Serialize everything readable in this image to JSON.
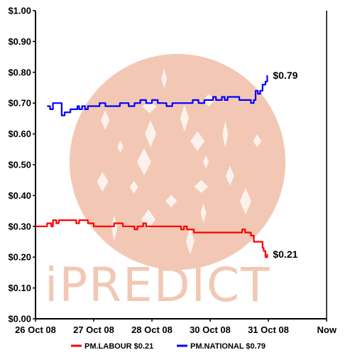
{
  "watermark": {
    "text": "iPREDICT",
    "color": "#f2c8b4"
  },
  "chart_data": {
    "type": "line",
    "title": "",
    "xlabel": "",
    "ylabel": "",
    "ylim": [
      0.0,
      1.0
    ],
    "y_ticks": [
      {
        "value": 0.0,
        "label": "$0.00"
      },
      {
        "value": 0.1,
        "label": "$0.10"
      },
      {
        "value": 0.2,
        "label": "$0.20"
      },
      {
        "value": 0.3,
        "label": "$0.30"
      },
      {
        "value": 0.4,
        "label": "$0.40"
      },
      {
        "value": 0.5,
        "label": "$0.50"
      },
      {
        "value": 0.6,
        "label": "$0.60"
      },
      {
        "value": 0.7,
        "label": "$0.70"
      },
      {
        "value": 0.8,
        "label": "$0.80"
      },
      {
        "value": 0.9,
        "label": "$0.90"
      },
      {
        "value": 1.0,
        "label": "$1.00"
      }
    ],
    "x_ticks": [
      "26 Oct 08",
      "27 Oct 08",
      "28 Oct 08",
      "30 Oct 08",
      "31 Oct 08",
      "Now"
    ],
    "grid": false,
    "legend_position": "bottom",
    "series": [
      {
        "name": "PM.LABOUR $0.21",
        "color": "#ff0000",
        "end_label": "$0.21",
        "x": [
          0.0,
          0.15,
          0.2,
          0.27,
          0.3,
          0.33,
          0.36,
          0.4,
          0.5,
          0.55,
          0.6,
          0.65,
          0.7,
          0.75,
          0.8,
          0.9,
          1.0,
          1.03,
          1.05,
          1.1,
          1.2,
          1.3,
          1.35,
          1.4,
          1.5,
          1.6,
          1.7,
          1.75,
          1.8,
          1.85,
          1.9,
          2.0,
          2.05,
          2.1,
          2.15,
          2.2,
          2.3,
          2.45,
          2.5,
          2.55,
          2.6,
          2.7,
          2.72,
          2.74,
          2.8,
          2.85,
          2.9,
          3.0,
          3.2,
          3.4,
          3.5,
          3.55,
          3.6,
          3.65,
          3.7,
          3.75,
          3.78,
          3.82,
          3.86,
          3.9,
          3.92,
          3.95,
          3.98
        ],
        "values": [
          0.3,
          0.3,
          0.31,
          0.3,
          0.32,
          0.32,
          0.31,
          0.32,
          0.32,
          0.32,
          0.32,
          0.32,
          0.31,
          0.32,
          0.32,
          0.31,
          0.3,
          0.3,
          0.3,
          0.3,
          0.3,
          0.3,
          0.31,
          0.31,
          0.3,
          0.3,
          0.29,
          0.3,
          0.3,
          0.31,
          0.3,
          0.3,
          0.3,
          0.3,
          0.3,
          0.3,
          0.3,
          0.3,
          0.29,
          0.3,
          0.29,
          0.29,
          0.28,
          0.28,
          0.28,
          0.28,
          0.28,
          0.28,
          0.28,
          0.28,
          0.28,
          0.29,
          0.28,
          0.28,
          0.27,
          0.25,
          0.25,
          0.25,
          0.25,
          0.23,
          0.22,
          0.2,
          0.21
        ]
      },
      {
        "name": "PM.NATIONAL $0.79",
        "color": "#0000ff",
        "end_label": "$0.79",
        "x": [
          0.2,
          0.25,
          0.3,
          0.35,
          0.4,
          0.45,
          0.5,
          0.6,
          0.7,
          0.72,
          0.75,
          0.8,
          0.85,
          0.9,
          1.0,
          1.05,
          1.1,
          1.2,
          1.3,
          1.4,
          1.45,
          1.5,
          1.6,
          1.7,
          1.8,
          1.9,
          2.0,
          2.05,
          2.1,
          2.2,
          2.25,
          2.3,
          2.35,
          2.4,
          2.5,
          2.6,
          2.7,
          2.8,
          2.9,
          3.0,
          3.05,
          3.1,
          3.2,
          3.25,
          3.3,
          3.4,
          3.5,
          3.55,
          3.6,
          3.7,
          3.75,
          3.78,
          3.82,
          3.86,
          3.88,
          3.9,
          3.95,
          3.98
        ],
        "values": [
          0.69,
          0.68,
          0.7,
          0.7,
          0.7,
          0.66,
          0.67,
          0.68,
          0.68,
          0.69,
          0.68,
          0.69,
          0.68,
          0.69,
          0.69,
          0.69,
          0.7,
          0.69,
          0.69,
          0.69,
          0.7,
          0.7,
          0.69,
          0.7,
          0.71,
          0.7,
          0.71,
          0.71,
          0.7,
          0.7,
          0.69,
          0.69,
          0.7,
          0.7,
          0.7,
          0.7,
          0.71,
          0.7,
          0.71,
          0.71,
          0.72,
          0.71,
          0.72,
          0.71,
          0.72,
          0.72,
          0.71,
          0.71,
          0.71,
          0.7,
          0.71,
          0.74,
          0.73,
          0.74,
          0.74,
          0.76,
          0.77,
          0.79
        ]
      }
    ]
  }
}
